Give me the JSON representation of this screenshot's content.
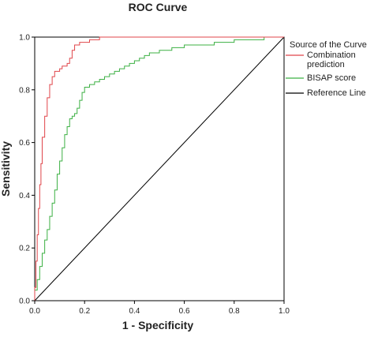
{
  "chart_data": {
    "type": "line",
    "title": "ROC Curve",
    "xlabel": "1 - Specificity",
    "ylabel": "Sensitivity",
    "xlim": [
      0,
      1
    ],
    "ylim": [
      0,
      1
    ],
    "xticks": [
      "0.0",
      "0.2",
      "0.4",
      "0.6",
      "0.8",
      "1.0"
    ],
    "yticks": [
      "0.0",
      "0.2",
      "0.4",
      "0.6",
      "0.8",
      "1.0"
    ],
    "grid": false,
    "legend": {
      "title": "Source of the Curve",
      "placement": "right",
      "entries": [
        {
          "label_lines": [
            "Combination",
            "prediction"
          ],
          "color": "#e0454a"
        },
        {
          "label_lines": [
            "BISAP score"
          ],
          "color": "#3cb043"
        },
        {
          "label_lines": [
            "Reference Line"
          ],
          "color": "#000000"
        }
      ]
    },
    "series": [
      {
        "name": "Combination prediction",
        "color": "#e0454a",
        "x": [
          0.0,
          0.005,
          0.01,
          0.015,
          0.02,
          0.025,
          0.03,
          0.04,
          0.05,
          0.06,
          0.07,
          0.08,
          0.09,
          0.1,
          0.11,
          0.12,
          0.13,
          0.14,
          0.15,
          0.16,
          0.18,
          0.2,
          0.22,
          0.24,
          0.26,
          0.28,
          0.3,
          0.5,
          0.7,
          1.0
        ],
        "y": [
          0.0,
          0.05,
          0.15,
          0.25,
          0.35,
          0.44,
          0.52,
          0.62,
          0.7,
          0.77,
          0.82,
          0.85,
          0.87,
          0.87,
          0.88,
          0.89,
          0.89,
          0.9,
          0.92,
          0.95,
          0.97,
          0.98,
          0.98,
          0.99,
          0.99,
          1.0,
          1.0,
          1.0,
          1.0,
          1.0
        ]
      },
      {
        "name": "BISAP score",
        "color": "#3cb043",
        "x": [
          0.0,
          0.01,
          0.02,
          0.03,
          0.04,
          0.05,
          0.06,
          0.07,
          0.08,
          0.09,
          0.1,
          0.11,
          0.12,
          0.13,
          0.14,
          0.15,
          0.16,
          0.17,
          0.18,
          0.19,
          0.2,
          0.22,
          0.24,
          0.26,
          0.28,
          0.3,
          0.32,
          0.34,
          0.36,
          0.38,
          0.4,
          0.42,
          0.44,
          0.46,
          0.5,
          0.55,
          0.6,
          0.66,
          0.72,
          0.8,
          0.86,
          0.92,
          1.0
        ],
        "y": [
          0.0,
          0.04,
          0.08,
          0.13,
          0.18,
          0.23,
          0.27,
          0.32,
          0.37,
          0.42,
          0.48,
          0.53,
          0.58,
          0.63,
          0.66,
          0.69,
          0.7,
          0.71,
          0.73,
          0.76,
          0.79,
          0.81,
          0.82,
          0.83,
          0.84,
          0.85,
          0.86,
          0.87,
          0.88,
          0.89,
          0.9,
          0.91,
          0.92,
          0.93,
          0.94,
          0.95,
          0.96,
          0.97,
          0.97,
          0.98,
          0.99,
          0.99,
          1.0
        ]
      },
      {
        "name": "Reference Line",
        "color": "#000000",
        "x": [
          0.0,
          1.0
        ],
        "y": [
          0.0,
          1.0
        ]
      }
    ]
  }
}
